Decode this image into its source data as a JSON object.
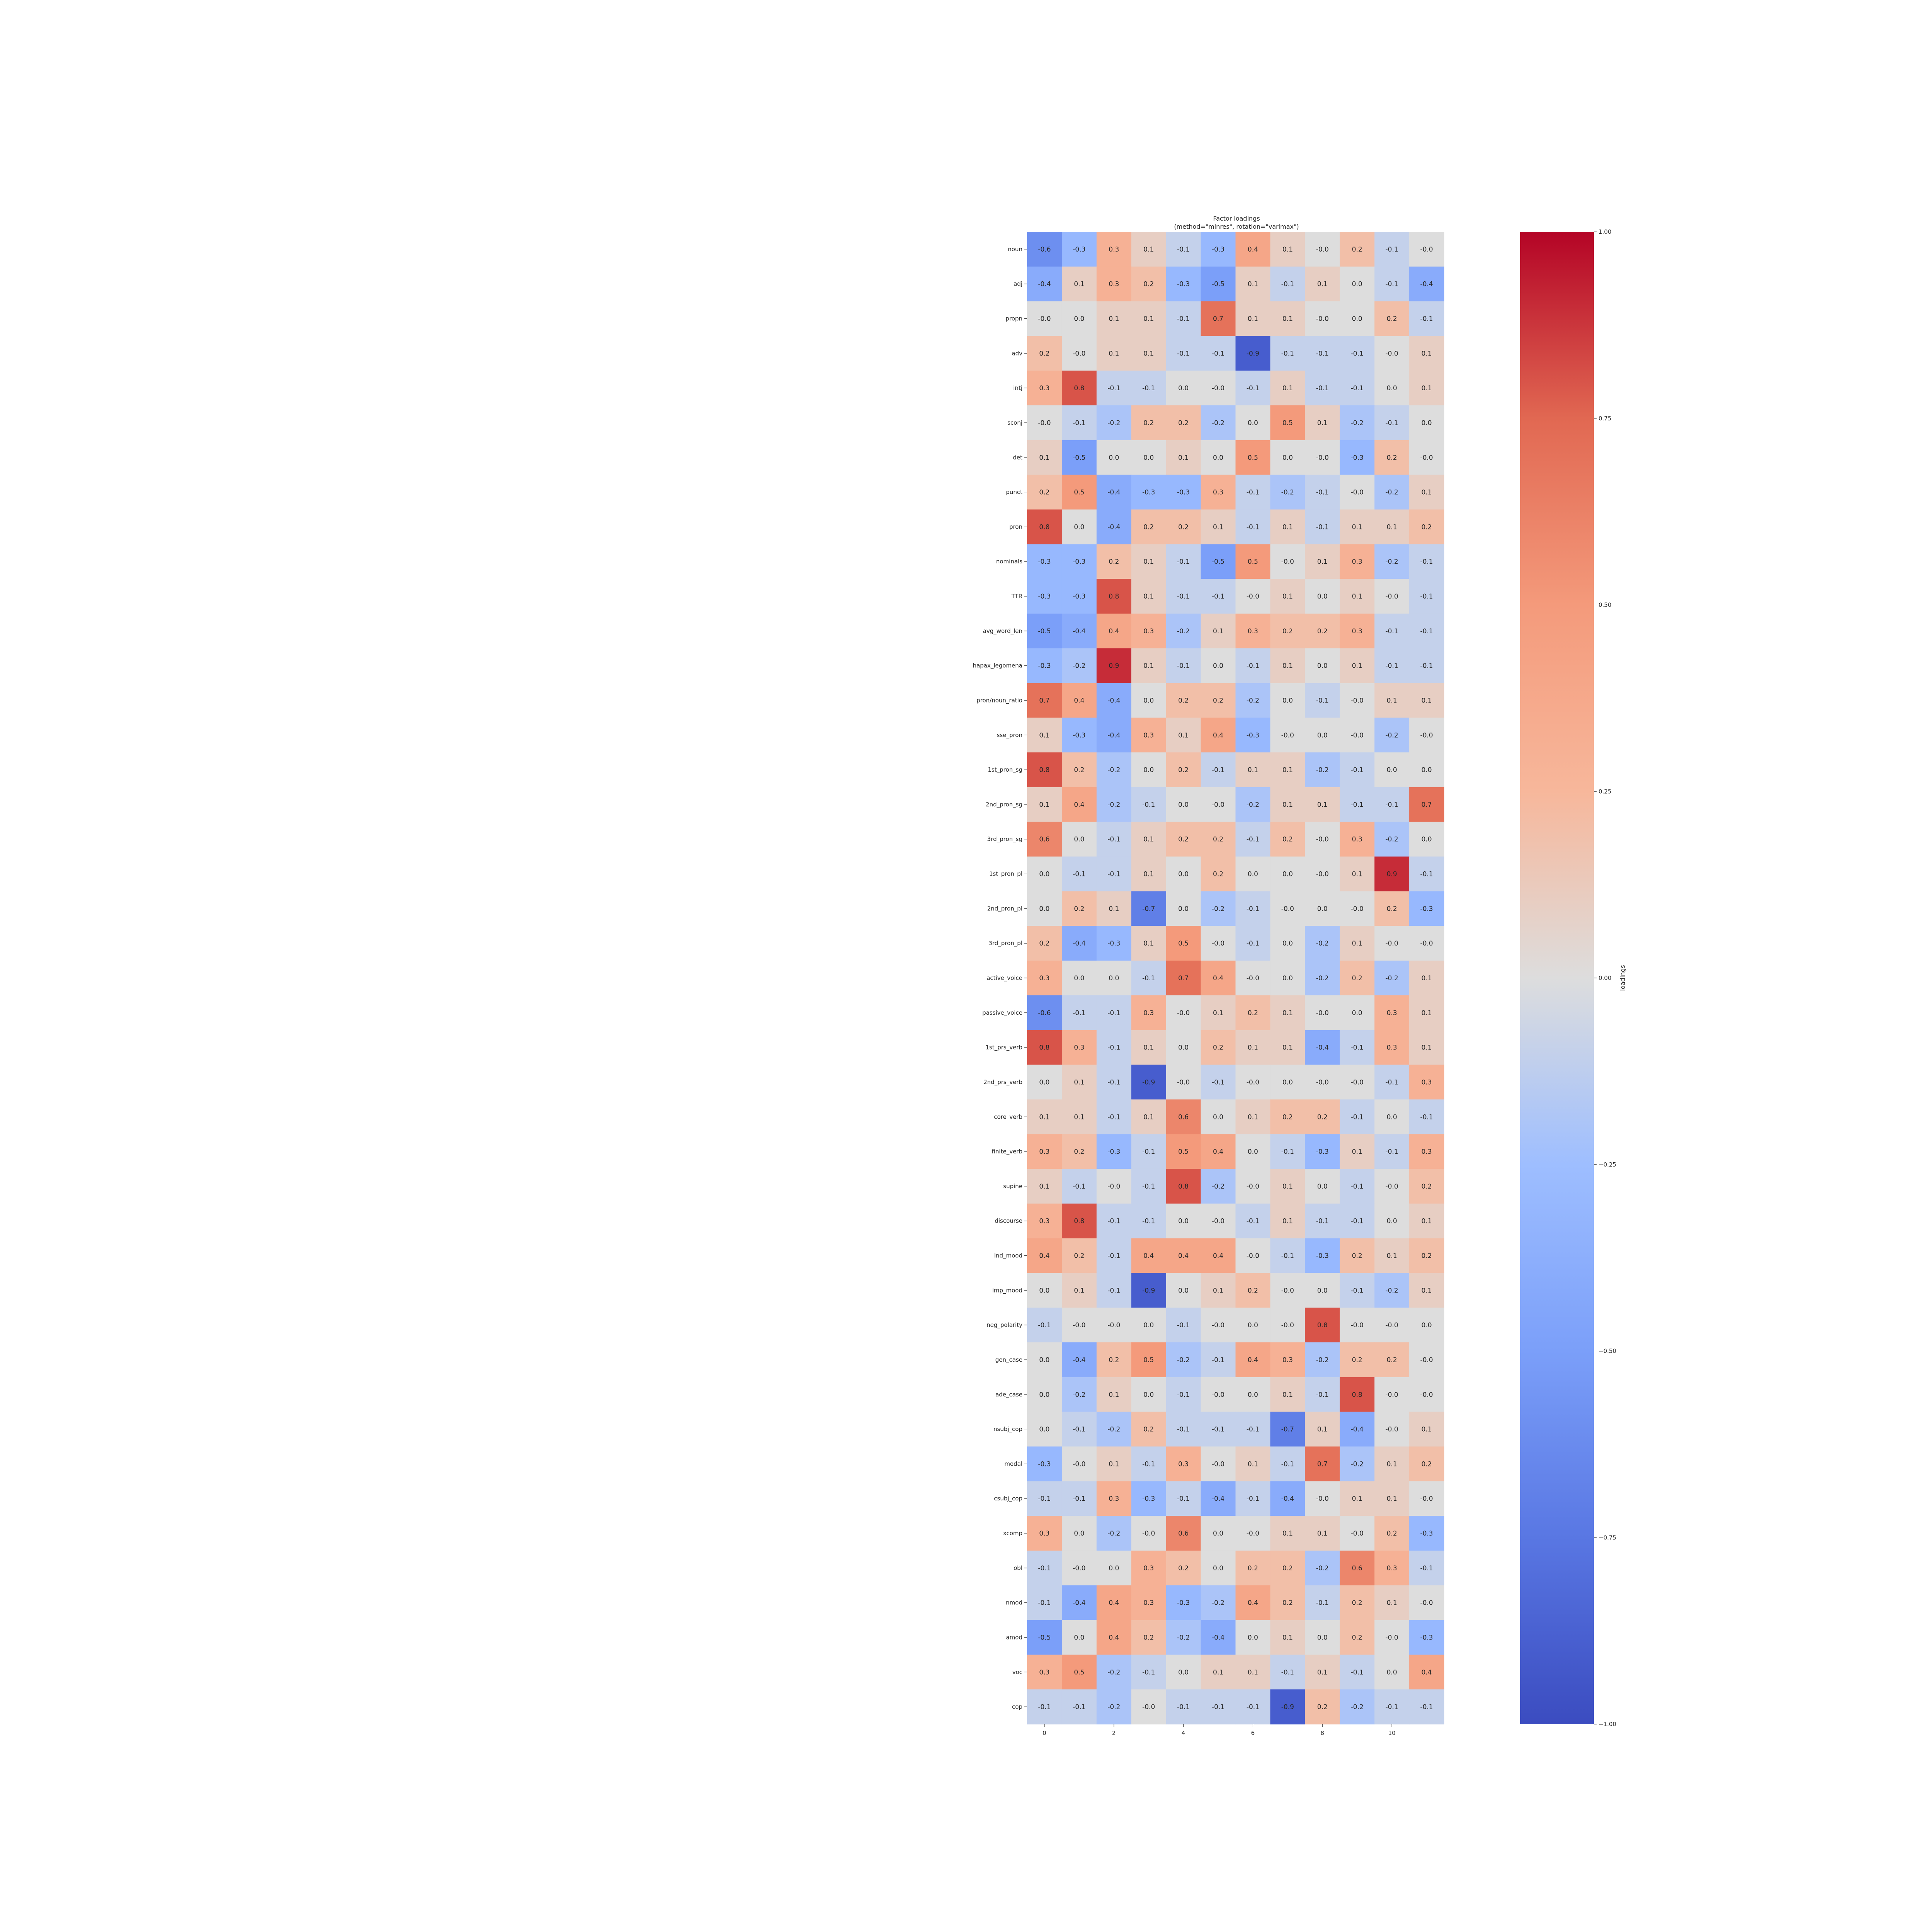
{
  "chart_data": {
    "type": "heatmap",
    "title": "Factor loadings\n(method=\"minres\", rotation=\"varimax\")",
    "colorbar_label": "loadings",
    "colormap": "coolwarm",
    "vmin": -1.0,
    "vmax": 1.0,
    "colorbar_ticks": [
      "1.00",
      "0.75",
      "0.50",
      "0.25",
      "0.00",
      "−0.25",
      "−0.50",
      "−0.75",
      "−1.00"
    ],
    "colorbar_tick_values": [
      1.0,
      0.75,
      0.5,
      0.25,
      0.0,
      -0.25,
      -0.5,
      -0.75,
      -1.0
    ],
    "x_tick_labels": [
      "0",
      "2",
      "4",
      "6",
      "8",
      "10"
    ],
    "x_tick_indices": [
      0,
      2,
      4,
      6,
      8,
      10
    ],
    "rows": [
      "noun",
      "adj",
      "propn",
      "adv",
      "intj",
      "sconj",
      "det",
      "punct",
      "pron",
      "nominals",
      "TTR",
      "avg_word_len",
      "hapax_legomena",
      "pron/noun_ratio",
      "sse_pron",
      "1st_pron_sg",
      "2nd_pron_sg",
      "3rd_pron_sg",
      "1st_pron_pl",
      "2nd_pron_pl",
      "3rd_pron_pl",
      "active_voice",
      "passive_voice",
      "1st_prs_verb",
      "2nd_prs_verb",
      "core_verb",
      "finite_verb",
      "supine",
      "discourse",
      "ind_mood",
      "imp_mood",
      "neg_polarity",
      "gen_case",
      "ade_case",
      "nsubj_cop",
      "modal",
      "csubj_cop",
      "xcomp",
      "obl",
      "nmod",
      "amod",
      "voc",
      "cop"
    ],
    "values": [
      [
        -0.6,
        -0.3,
        0.3,
        0.1,
        -0.1,
        -0.3,
        0.4,
        0.1,
        -0.0,
        0.2,
        -0.1,
        -0.0
      ],
      [
        -0.4,
        0.1,
        0.3,
        0.2,
        -0.3,
        -0.5,
        0.1,
        -0.1,
        0.1,
        0.0,
        -0.1,
        -0.4
      ],
      [
        -0.0,
        0.0,
        0.1,
        0.1,
        -0.1,
        0.7,
        0.1,
        0.1,
        -0.0,
        0.0,
        0.2,
        -0.1
      ],
      [
        0.2,
        -0.0,
        0.1,
        0.1,
        -0.1,
        -0.1,
        -0.9,
        -0.1,
        -0.1,
        -0.1,
        -0.0,
        0.1
      ],
      [
        0.3,
        0.8,
        -0.1,
        -0.1,
        0.0,
        -0.0,
        -0.1,
        0.1,
        -0.1,
        -0.1,
        0.0,
        0.1
      ],
      [
        -0.0,
        -0.1,
        -0.2,
        0.2,
        0.2,
        -0.2,
        0.0,
        0.5,
        0.1,
        -0.2,
        -0.1,
        0.0
      ],
      [
        0.1,
        -0.5,
        0.0,
        0.0,
        0.1,
        0.0,
        0.5,
        0.0,
        -0.0,
        -0.3,
        0.2,
        -0.0
      ],
      [
        0.2,
        0.5,
        -0.4,
        -0.3,
        -0.3,
        0.3,
        -0.1,
        -0.2,
        -0.1,
        -0.0,
        -0.2,
        0.1
      ],
      [
        0.8,
        0.0,
        -0.4,
        0.2,
        0.2,
        0.1,
        -0.1,
        0.1,
        -0.1,
        0.1,
        0.1,
        0.2
      ],
      [
        -0.3,
        -0.3,
        0.2,
        0.1,
        -0.1,
        -0.5,
        0.5,
        -0.0,
        0.1,
        0.3,
        -0.2,
        -0.1
      ],
      [
        -0.3,
        -0.3,
        0.8,
        0.1,
        -0.1,
        -0.1,
        -0.0,
        0.1,
        0.0,
        0.1,
        -0.0,
        -0.1
      ],
      [
        -0.5,
        -0.4,
        0.4,
        0.3,
        -0.2,
        0.1,
        0.3,
        0.2,
        0.2,
        0.3,
        -0.1,
        -0.1
      ],
      [
        -0.3,
        -0.2,
        0.9,
        0.1,
        -0.1,
        0.0,
        -0.1,
        0.1,
        0.0,
        0.1,
        -0.1,
        -0.1
      ],
      [
        0.7,
        0.4,
        -0.4,
        0.0,
        0.2,
        0.2,
        -0.2,
        0.0,
        -0.1,
        -0.0,
        0.1,
        0.1
      ],
      [
        0.1,
        -0.3,
        -0.4,
        0.3,
        0.1,
        0.4,
        -0.3,
        -0.0,
        0.0,
        -0.0,
        -0.2,
        -0.0
      ],
      [
        0.8,
        0.2,
        -0.2,
        0.0,
        0.2,
        -0.1,
        0.1,
        0.1,
        -0.2,
        -0.1,
        0.0,
        0.0
      ],
      [
        0.1,
        0.4,
        -0.2,
        -0.1,
        0.0,
        -0.0,
        -0.2,
        0.1,
        0.1,
        -0.1,
        -0.1,
        0.7
      ],
      [
        0.6,
        0.0,
        -0.1,
        0.1,
        0.2,
        0.2,
        -0.1,
        0.2,
        -0.0,
        0.3,
        -0.2,
        0.0
      ],
      [
        0.0,
        -0.1,
        -0.1,
        0.1,
        0.0,
        0.2,
        0.0,
        0.0,
        -0.0,
        0.1,
        0.9,
        -0.1
      ],
      [
        0.0,
        0.2,
        0.1,
        -0.7,
        0.0,
        -0.2,
        -0.1,
        -0.0,
        0.0,
        -0.0,
        0.2,
        -0.3
      ],
      [
        0.2,
        -0.4,
        -0.3,
        0.1,
        0.5,
        -0.0,
        -0.1,
        0.0,
        -0.2,
        0.1,
        -0.0,
        -0.0
      ],
      [
        0.3,
        0.0,
        0.0,
        -0.1,
        0.7,
        0.4,
        -0.0,
        0.0,
        -0.2,
        0.2,
        -0.2,
        0.1
      ],
      [
        -0.6,
        -0.1,
        -0.1,
        0.3,
        -0.0,
        0.1,
        0.2,
        0.1,
        -0.0,
        0.0,
        0.3,
        0.1
      ],
      [
        0.8,
        0.3,
        -0.1,
        0.1,
        0.0,
        0.2,
        0.1,
        0.1,
        -0.4,
        -0.1,
        0.3,
        0.1
      ],
      [
        0.0,
        0.1,
        -0.1,
        -0.9,
        -0.0,
        -0.1,
        -0.0,
        0.0,
        -0.0,
        -0.0,
        -0.1,
        0.3
      ],
      [
        0.1,
        0.1,
        -0.1,
        0.1,
        0.6,
        0.0,
        0.1,
        0.2,
        0.2,
        -0.1,
        0.0,
        -0.1
      ],
      [
        0.3,
        0.2,
        -0.3,
        -0.1,
        0.5,
        0.4,
        0.0,
        -0.1,
        -0.3,
        0.1,
        -0.1,
        0.3
      ],
      [
        0.1,
        -0.1,
        -0.0,
        -0.1,
        0.8,
        -0.2,
        -0.0,
        0.1,
        0.0,
        -0.1,
        -0.0,
        0.2
      ],
      [
        0.3,
        0.8,
        -0.1,
        -0.1,
        0.0,
        -0.0,
        -0.1,
        0.1,
        -0.1,
        -0.1,
        0.0,
        0.1
      ],
      [
        0.4,
        0.2,
        -0.1,
        0.4,
        0.4,
        0.4,
        -0.0,
        -0.1,
        -0.3,
        0.2,
        0.1,
        0.2
      ],
      [
        0.0,
        0.1,
        -0.1,
        -0.9,
        0.0,
        0.1,
        0.2,
        -0.0,
        0.0,
        -0.1,
        -0.2,
        0.1
      ],
      [
        -0.1,
        -0.0,
        -0.0,
        0.0,
        -0.1,
        -0.0,
        0.0,
        -0.0,
        0.8,
        -0.0,
        -0.0,
        0.0
      ],
      [
        0.0,
        -0.4,
        0.2,
        0.5,
        -0.2,
        -0.1,
        0.4,
        0.3,
        -0.2,
        0.2,
        0.2,
        -0.0
      ],
      [
        0.0,
        -0.2,
        0.1,
        0.0,
        -0.1,
        -0.0,
        0.0,
        0.1,
        -0.1,
        0.8,
        -0.0,
        -0.0
      ],
      [
        0.0,
        -0.1,
        -0.2,
        0.2,
        -0.1,
        -0.1,
        -0.1,
        -0.7,
        0.1,
        -0.4,
        -0.0,
        0.1
      ],
      [
        -0.3,
        -0.0,
        0.1,
        -0.1,
        0.3,
        -0.0,
        0.1,
        -0.1,
        0.7,
        -0.2,
        0.1,
        0.2
      ],
      [
        -0.1,
        -0.1,
        0.3,
        -0.3,
        -0.1,
        -0.4,
        -0.1,
        -0.4,
        -0.0,
        0.1,
        0.1,
        -0.0
      ],
      [
        0.3,
        0.0,
        -0.2,
        -0.0,
        0.6,
        0.0,
        -0.0,
        0.1,
        0.1,
        -0.0,
        0.2,
        -0.3
      ],
      [
        -0.1,
        -0.0,
        0.0,
        0.3,
        0.2,
        0.0,
        0.2,
        0.2,
        -0.2,
        0.6,
        0.3,
        -0.1
      ],
      [
        -0.1,
        -0.4,
        0.4,
        0.3,
        -0.3,
        -0.2,
        0.4,
        0.2,
        -0.1,
        0.2,
        0.1,
        -0.0
      ],
      [
        -0.5,
        0.0,
        0.4,
        0.2,
        -0.2,
        -0.4,
        0.0,
        0.1,
        0.0,
        0.2,
        -0.0,
        -0.3
      ],
      [
        0.3,
        0.5,
        -0.2,
        -0.1,
        0.0,
        0.1,
        0.1,
        -0.1,
        0.1,
        -0.1,
        0.0,
        0.4
      ],
      [
        -0.1,
        -0.1,
        -0.2,
        -0.0,
        -0.1,
        -0.1,
        -0.1,
        -0.9,
        0.2,
        -0.2,
        -0.1,
        -0.1
      ]
    ]
  }
}
